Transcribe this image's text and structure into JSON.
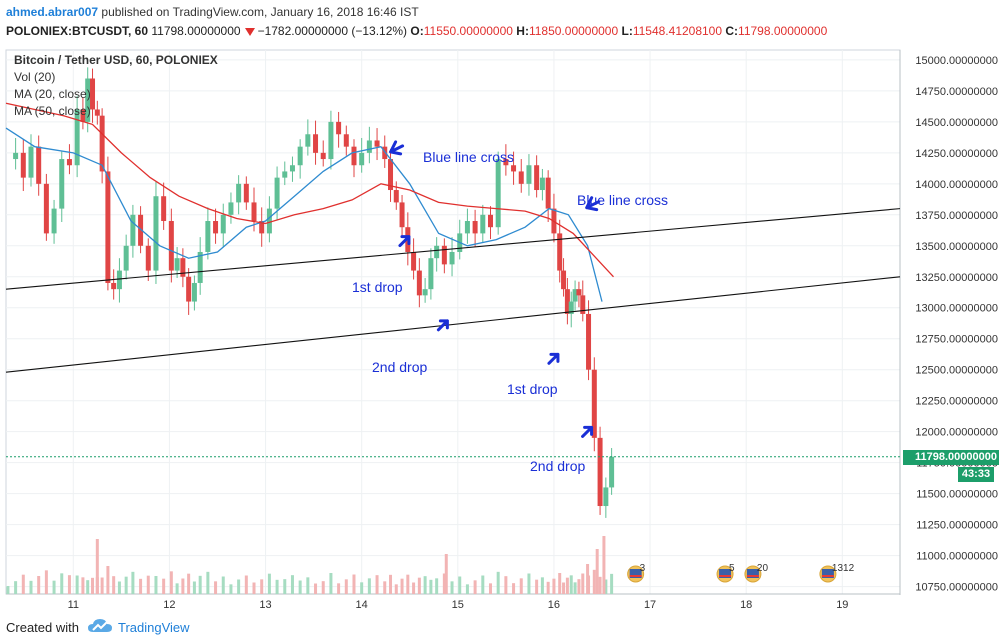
{
  "header": {
    "author": "ahmed.abrar007",
    "published_text": "published on TradingView.com, January 16, 2018 16:46 IST",
    "symbol": "POLONIEX:BTCUSDT, 60",
    "last": "11798.00000000",
    "change": "−1782.00000000 (−13.12%)",
    "open_label": "O:",
    "open_value": "11550.00000000",
    "high_label": "H:",
    "high_value": "11850.00000000",
    "low_label": "L:",
    "low_value": "11548.41208100",
    "close_label": "C:",
    "close_value": "11798.00000000"
  },
  "legend": {
    "title": "Bitcoin / Tether USD, 60, POLONIEX",
    "vol": "Vol (20)",
    "ma20": "MA (20, close)",
    "ma50": "MA (50, close)"
  },
  "price_tag": "11798.00000000",
  "time_tag": "43:33",
  "footer": {
    "created": "Created with",
    "brand": "TradingView"
  },
  "colors": {
    "up": "#5fbf95",
    "down": "#e04545",
    "ma20": "#2f8bd0",
    "ma50": "#e0302e",
    "accent": "#1e7fd8",
    "annot": "#1a2fd6",
    "price_tag": "#1c9e6a"
  },
  "annotations": [
    {
      "text": "Blue line cross",
      "arrow": "left"
    },
    {
      "text": "Blue line cross",
      "arrow": "left"
    },
    {
      "text": "1st drop",
      "arrow": "up"
    },
    {
      "text": "2nd drop",
      "arrow": "up"
    },
    {
      "text": "1st drop",
      "arrow": "up"
    },
    {
      "text": "2nd drop",
      "arrow": "up"
    }
  ],
  "events": [
    {
      "label": "3",
      "day": 16.85
    },
    {
      "label": "5",
      "day": 17.78
    },
    {
      "label": "20",
      "day": 18.07
    },
    {
      "label": "1312",
      "day": 18.85
    }
  ],
  "chart_data": {
    "type": "candlestick",
    "title": "Bitcoin / Tether USD, 60, POLONIEX",
    "x_ticks": [
      "11",
      "12",
      "13",
      "14",
      "15",
      "16",
      "17",
      "18",
      "19"
    ],
    "y_ticks": [
      "15000.00000000",
      "14750.00000000",
      "14500.00000000",
      "14250.00000000",
      "14000.00000000",
      "13750.00000000",
      "13500.00000000",
      "13250.00000000",
      "13000.00000000",
      "12750.00000000",
      "12500.00000000",
      "12250.00000000",
      "12000.00000000",
      "11750.00000000",
      "11500.00000000",
      "11250.00000000",
      "11000.00000000",
      "10750.00000000"
    ],
    "y_tick_values": [
      15000,
      14750,
      14500,
      14250,
      14000,
      13750,
      13500,
      13250,
      13000,
      12750,
      12500,
      12250,
      12000,
      11750,
      11500,
      11250,
      11000,
      10750
    ],
    "ylim": [
      10690,
      15080
    ],
    "xlim": [
      10.3,
      19.6
    ],
    "last_price": 11798,
    "grid": true,
    "close_series": [
      [
        10.32,
        14200
      ],
      [
        10.4,
        14250
      ],
      [
        10.48,
        14050
      ],
      [
        10.56,
        14300
      ],
      [
        10.64,
        14000
      ],
      [
        10.72,
        13600
      ],
      [
        10.8,
        13800
      ],
      [
        10.88,
        14200
      ],
      [
        10.96,
        14150
      ],
      [
        11.04,
        14600
      ],
      [
        11.1,
        14500
      ],
      [
        11.15,
        14850
      ],
      [
        11.2,
        14600
      ],
      [
        11.25,
        14550
      ],
      [
        11.3,
        14100
      ],
      [
        11.36,
        13200
      ],
      [
        11.42,
        13150
      ],
      [
        11.48,
        13300
      ],
      [
        11.55,
        13500
      ],
      [
        11.62,
        13750
      ],
      [
        11.7,
        13500
      ],
      [
        11.78,
        13300
      ],
      [
        11.86,
        13900
      ],
      [
        11.94,
        13700
      ],
      [
        12.02,
        13300
      ],
      [
        12.08,
        13400
      ],
      [
        12.14,
        13250
      ],
      [
        12.2,
        13050
      ],
      [
        12.26,
        13200
      ],
      [
        12.32,
        13450
      ],
      [
        12.4,
        13700
      ],
      [
        12.48,
        13600
      ],
      [
        12.56,
        13750
      ],
      [
        12.64,
        13850
      ],
      [
        12.72,
        14000
      ],
      [
        12.8,
        13850
      ],
      [
        12.88,
        13700
      ],
      [
        12.96,
        13600
      ],
      [
        13.04,
        13800
      ],
      [
        13.12,
        14050
      ],
      [
        13.2,
        14100
      ],
      [
        13.28,
        14150
      ],
      [
        13.36,
        14300
      ],
      [
        13.44,
        14400
      ],
      [
        13.52,
        14250
      ],
      [
        13.6,
        14200
      ],
      [
        13.68,
        14500
      ],
      [
        13.76,
        14400
      ],
      [
        13.84,
        14300
      ],
      [
        13.92,
        14150
      ],
      [
        14.0,
        14250
      ],
      [
        14.08,
        14350
      ],
      [
        14.16,
        14300
      ],
      [
        14.24,
        14200
      ],
      [
        14.3,
        13950
      ],
      [
        14.36,
        13850
      ],
      [
        14.42,
        13650
      ],
      [
        14.48,
        13450
      ],
      [
        14.54,
        13300
      ],
      [
        14.6,
        13100
      ],
      [
        14.66,
        13150
      ],
      [
        14.72,
        13400
      ],
      [
        14.78,
        13500
      ],
      [
        14.86,
        13350
      ],
      [
        14.94,
        13450
      ],
      [
        15.02,
        13600
      ],
      [
        15.1,
        13700
      ],
      [
        15.18,
        13600
      ],
      [
        15.26,
        13750
      ],
      [
        15.34,
        13650
      ],
      [
        15.42,
        14200
      ],
      [
        15.5,
        14150
      ],
      [
        15.58,
        14100
      ],
      [
        15.66,
        14000
      ],
      [
        15.74,
        14150
      ],
      [
        15.82,
        13950
      ],
      [
        15.88,
        14050
      ],
      [
        15.94,
        13800
      ],
      [
        16.0,
        13600
      ],
      [
        16.06,
        13300
      ],
      [
        16.1,
        13150
      ],
      [
        16.14,
        12950
      ],
      [
        16.18,
        13050
      ],
      [
        16.22,
        13150
      ],
      [
        16.26,
        13100
      ],
      [
        16.3,
        12950
      ],
      [
        16.36,
        12500
      ],
      [
        16.42,
        11950
      ],
      [
        16.48,
        11400
      ],
      [
        16.54,
        11550
      ],
      [
        16.6,
        11798
      ]
    ],
    "series": [
      {
        "name": "MA (20, close)",
        "values": [
          [
            10.3,
            14450
          ],
          [
            10.6,
            14300
          ],
          [
            11.0,
            14250
          ],
          [
            11.3,
            14150
          ],
          [
            11.6,
            13700
          ],
          [
            11.9,
            13500
          ],
          [
            12.2,
            13400
          ],
          [
            12.5,
            13450
          ],
          [
            12.8,
            13650
          ],
          [
            13.0,
            13700
          ],
          [
            13.3,
            13900
          ],
          [
            13.6,
            14100
          ],
          [
            13.9,
            14250
          ],
          [
            14.2,
            14300
          ],
          [
            14.5,
            14000
          ],
          [
            14.8,
            13600
          ],
          [
            15.1,
            13500
          ],
          [
            15.4,
            13550
          ],
          [
            15.7,
            13650
          ],
          [
            15.95,
            13800
          ],
          [
            16.15,
            13750
          ],
          [
            16.35,
            13500
          ],
          [
            16.5,
            13050
          ]
        ]
      },
      {
        "name": "MA (50, close)",
        "values": [
          [
            10.3,
            14650
          ],
          [
            10.6,
            14600
          ],
          [
            10.9,
            14550
          ],
          [
            11.2,
            14480
          ],
          [
            11.5,
            14250
          ],
          [
            11.8,
            14050
          ],
          [
            12.1,
            13900
          ],
          [
            12.4,
            13800
          ],
          [
            12.7,
            13720
          ],
          [
            13.0,
            13680
          ],
          [
            13.3,
            13750
          ],
          [
            13.6,
            13800
          ],
          [
            13.9,
            13870
          ],
          [
            14.2,
            14000
          ],
          [
            14.5,
            13950
          ],
          [
            14.8,
            13850
          ],
          [
            15.1,
            13820
          ],
          [
            15.4,
            13800
          ],
          [
            15.7,
            13780
          ],
          [
            15.95,
            13720
          ],
          [
            16.2,
            13600
          ],
          [
            16.5,
            13350
          ],
          [
            16.62,
            13250
          ]
        ]
      }
    ],
    "trendlines": [
      {
        "from": [
          10.3,
          13150
        ],
        "to": [
          19.6,
          13800
        ]
      },
      {
        "from": [
          10.3,
          12480
        ],
        "to": [
          19.6,
          13250
        ]
      }
    ]
  }
}
